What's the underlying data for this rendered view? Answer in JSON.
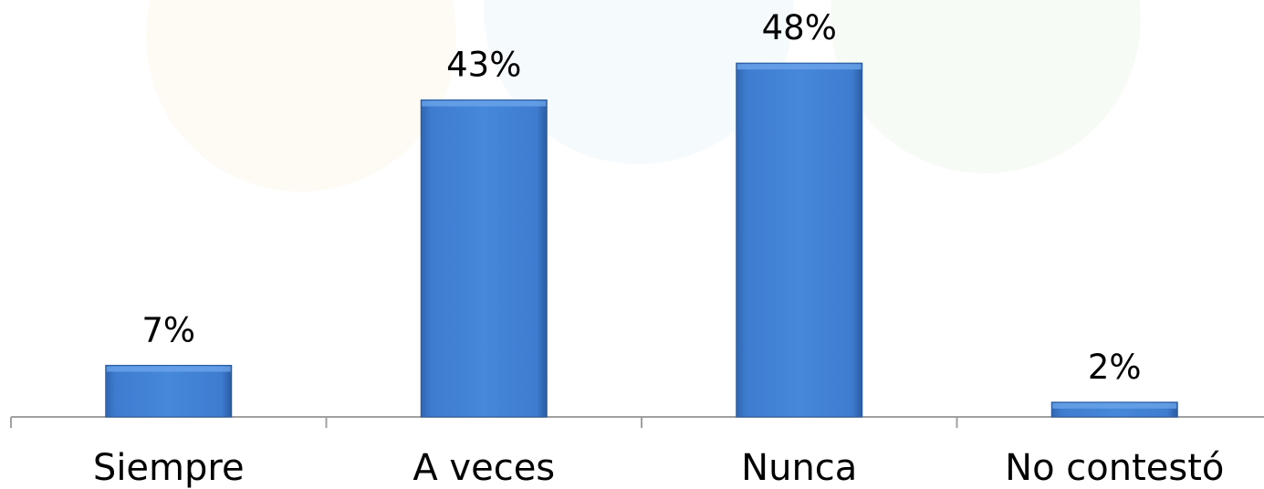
{
  "chart_data": {
    "type": "bar",
    "categories": [
      "Siempre",
      "A veces",
      "Nunca",
      "No contestó"
    ],
    "values": [
      7,
      43,
      48,
      2
    ],
    "value_labels": [
      "7%",
      "43%",
      "48%",
      "2%"
    ],
    "color": "#3f7fd0"
  }
}
